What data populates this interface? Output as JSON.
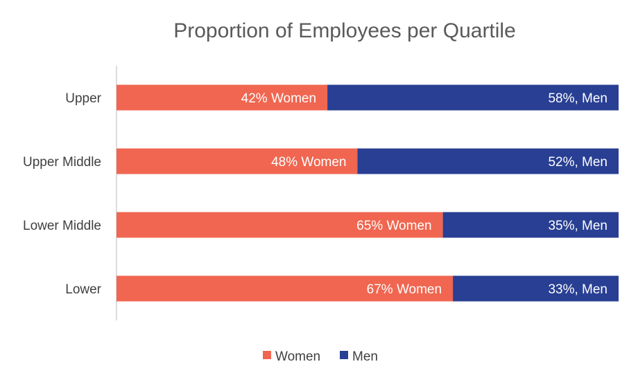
{
  "chart_data": {
    "type": "bar",
    "orientation": "horizontal",
    "stacked": "100%",
    "title": "Proportion of Employees per Quartile",
    "categories": [
      "Upper",
      "Upper Middle",
      "Lower Middle",
      "Lower"
    ],
    "series": [
      {
        "name": "Women",
        "values": [
          42,
          48,
          65,
          67
        ],
        "color": "#F06650",
        "labels": [
          "42% Women",
          "48% Women",
          "65% Women",
          "67% Women"
        ]
      },
      {
        "name": "Men",
        "values": [
          58,
          52,
          35,
          33
        ],
        "color": "#283F93",
        "labels": [
          "58%, Men",
          "52%, Men",
          "35%, Men",
          "33%, Men"
        ]
      }
    ],
    "xlim": [
      0,
      100
    ],
    "grid": false,
    "legend": "bottom"
  }
}
